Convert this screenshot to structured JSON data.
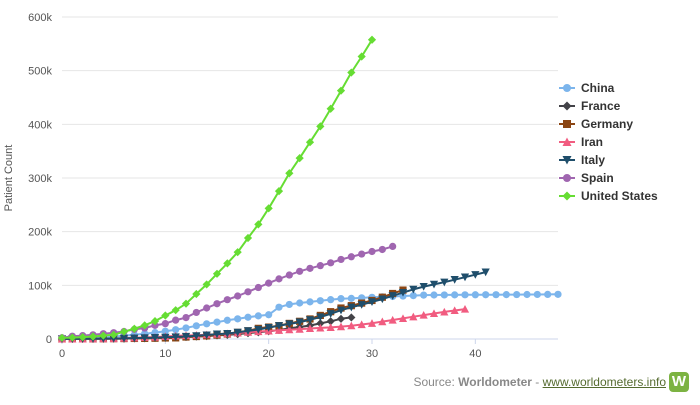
{
  "chart_data": {
    "type": "line",
    "title": "",
    "xlabel": "",
    "ylabel": "Patient Count",
    "xlim": [
      0,
      48
    ],
    "ylim": [
      0,
      600000
    ],
    "x_ticks": [
      "0",
      "10",
      "20",
      "30",
      "40"
    ],
    "y_ticks": [
      "0",
      "100k",
      "200k",
      "300k",
      "400k",
      "500k",
      "600k"
    ],
    "grid": "horizontal",
    "legend": "right",
    "series": [
      {
        "name": "China",
        "color": "#7cb5ec",
        "marker": "circle",
        "x": [
          0,
          1,
          2,
          3,
          4,
          5,
          6,
          7,
          8,
          9,
          10,
          11,
          12,
          13,
          14,
          15,
          16,
          17,
          18,
          19,
          20,
          21,
          22,
          23,
          24,
          25,
          26,
          27,
          28,
          29,
          30,
          31,
          32,
          33,
          34,
          35,
          36,
          37,
          38,
          39,
          40,
          41,
          42,
          43,
          44,
          45,
          46,
          47,
          48
        ],
        "y": [
          580,
          845,
          1317,
          2015,
          2800,
          4581,
          6058,
          7813,
          9823,
          11948,
          14551,
          17389,
          20628,
          24553,
          28276,
          31439,
          34876,
          37552,
          40553,
          43099,
          45170,
          59283,
          64437,
          67100,
          69197,
          71329,
          73332,
          75184,
          75700,
          76677,
          77673,
          78651,
          79205,
          80087,
          80828,
          81820,
          82000,
          82100,
          82200,
          82300,
          82400,
          82500,
          82600,
          82700,
          82800,
          82900,
          83000,
          83100,
          83200
        ]
      },
      {
        "name": "France",
        "color": "#434348",
        "marker": "diamond",
        "x": [
          0,
          1,
          2,
          3,
          4,
          5,
          6,
          7,
          8,
          9,
          10,
          11,
          12,
          13,
          14,
          15,
          16,
          17,
          18,
          19,
          20,
          21,
          22,
          23,
          24,
          25,
          26,
          27,
          28
        ],
        "y": [
          100,
          191,
          212,
          285,
          423,
          613,
          716,
          1126,
          1412,
          1784,
          2281,
          2876,
          3661,
          4499,
          5423,
          6633,
          7730,
          9134,
          10995,
          12612,
          14459,
          16689,
          19856,
          22302,
          25233,
          29155,
          32964,
          37575,
          40174
        ]
      },
      {
        "name": "Germany",
        "color": "#8b4513",
        "marker": "square",
        "x": [
          0,
          1,
          2,
          3,
          4,
          5,
          6,
          7,
          8,
          9,
          10,
          11,
          12,
          13,
          14,
          15,
          16,
          17,
          18,
          19,
          20,
          21,
          22,
          23,
          24,
          25,
          26,
          27,
          28,
          29,
          30,
          31,
          32,
          33
        ],
        "y": [
          130,
          159,
          196,
          262,
          482,
          670,
          799,
          1040,
          1176,
          1457,
          1908,
          2078,
          3675,
          4585,
          5795,
          7272,
          9257,
          12327,
          15320,
          19848,
          22213,
          24873,
          29056,
          32986,
          37323,
          43938,
          50871,
          57695,
          62095,
          66885,
          71808,
          77872,
          84794,
          91159
        ]
      },
      {
        "name": "Iran",
        "color": "#f15c80",
        "marker": "triangle",
        "x": [
          0,
          1,
          2,
          3,
          4,
          5,
          6,
          7,
          8,
          9,
          10,
          11,
          12,
          13,
          14,
          15,
          16,
          17,
          18,
          19,
          20,
          21,
          22,
          23,
          24,
          25,
          26,
          27,
          28,
          29,
          30,
          31,
          32,
          33,
          34,
          35,
          36,
          37,
          38,
          39
        ],
        "y": [
          95,
          139,
          245,
          388,
          593,
          978,
          1501,
          2336,
          2922,
          3513,
          4747,
          5823,
          6566,
          7161,
          8042,
          9000,
          10075,
          11364,
          12729,
          13938,
          14991,
          16169,
          17361,
          18407,
          19644,
          20610,
          21638,
          23049,
          24811,
          27017,
          29406,
          32332,
          35408,
          38309,
          41495,
          44605,
          47593,
          50468,
          53183,
          55743
        ]
      },
      {
        "name": "Italy",
        "color": "#1f4e6b",
        "marker": "triangle-down",
        "x": [
          0,
          1,
          2,
          3,
          4,
          5,
          6,
          7,
          8,
          9,
          10,
          11,
          12,
          13,
          14,
          15,
          16,
          17,
          18,
          19,
          20,
          21,
          22,
          23,
          24,
          25,
          26,
          27,
          28,
          29,
          30,
          31,
          32,
          33,
          34,
          35,
          36,
          37,
          38,
          39,
          40,
          41
        ],
        "y": [
          155,
          229,
          322,
          453,
          655,
          888,
          1128,
          1694,
          2036,
          2502,
          3089,
          3858,
          4636,
          5883,
          7375,
          9172,
          10149,
          12462,
          15113,
          17660,
          21157,
          24747,
          27980,
          31506,
          35713,
          41035,
          47021,
          53578,
          59138,
          63927,
          69176,
          74386,
          80589,
          86498,
          92472,
          97689,
          101739,
          105792,
          110574,
          115242,
          119827,
          124632
        ]
      },
      {
        "name": "Spain",
        "color": "#a066b0",
        "marker": "circle",
        "x": [
          0,
          1,
          2,
          3,
          4,
          5,
          6,
          7,
          8,
          9,
          10,
          11,
          12,
          13,
          14,
          15,
          16,
          17,
          18,
          19,
          20,
          21,
          22,
          23,
          24,
          25,
          26,
          27,
          28,
          29,
          30,
          31,
          32
        ],
        "y": [
          2277,
          5232,
          6391,
          7798,
          9942,
          11748,
          13910,
          17963,
          20410,
          25374,
          28603,
          35136,
          39885,
          49515,
          57786,
          65719,
          73235,
          80110,
          87956,
          95923,
          104118,
          112065,
          119199,
          126168,
          131646,
          136675,
          141942,
          148220,
          153222,
          158273,
          163027,
          166831,
          172541
        ]
      },
      {
        "name": "United States",
        "color": "#66dd33",
        "marker": "diamond",
        "x": [
          0,
          1,
          2,
          3,
          4,
          5,
          6,
          7,
          8,
          9,
          10,
          11,
          12,
          13,
          14,
          15,
          16,
          17,
          18,
          19,
          20,
          21,
          22,
          23,
          24,
          25,
          26,
          27,
          28,
          29,
          30
        ],
        "y": [
          2200,
          2700,
          3500,
          4600,
          6400,
          7800,
          13600,
          19100,
          25500,
          33300,
          43800,
          53700,
          65800,
          83800,
          101700,
          121500,
          140900,
          161800,
          188200,
          213600,
          243500,
          275600,
          308800,
          337100,
          366700,
          396200,
          429100,
          462700,
          496500,
          526400,
          557600
        ]
      }
    ]
  },
  "source": {
    "prefix": "Source: ",
    "name": "Worldometer",
    "separator": " - ",
    "url_text": "www.worldometers.info",
    "logo_text": "W"
  }
}
